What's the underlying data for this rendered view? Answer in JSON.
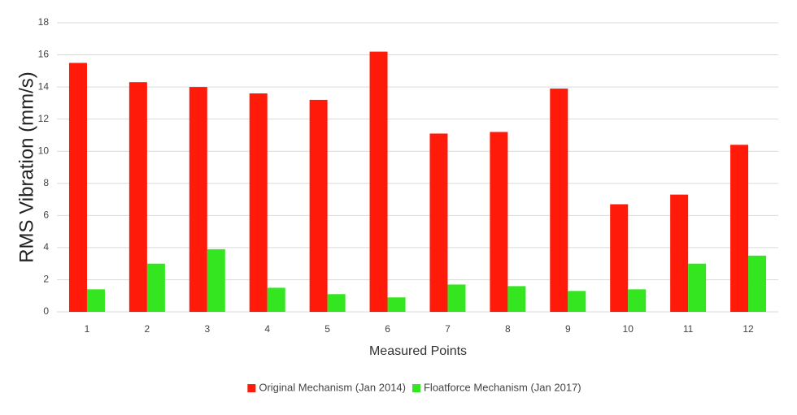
{
  "chart_data": {
    "type": "bar",
    "x_label": "Measured Points",
    "y_label": "RMS Vibration (mm/s)",
    "categories": [
      "1",
      "2",
      "3",
      "4",
      "5",
      "6",
      "7",
      "8",
      "9",
      "10",
      "11",
      "12"
    ],
    "series": [
      {
        "name": "Original Mechanism (Jan 2014)",
        "color": "#ff1a0a",
        "values": [
          15.5,
          14.3,
          14.0,
          13.6,
          13.2,
          16.2,
          11.1,
          11.2,
          13.9,
          6.7,
          7.3,
          10.4
        ]
      },
      {
        "name": "Floatforce Mechanism (Jan 2017)",
        "color": "#33e61f",
        "values": [
          1.4,
          3.0,
          3.9,
          1.5,
          1.1,
          0.9,
          1.7,
          1.6,
          1.3,
          1.4,
          3.0,
          3.5
        ]
      }
    ],
    "ylim": [
      0,
      18
    ],
    "yticks": [
      0,
      2,
      4,
      6,
      8,
      10,
      12,
      14,
      16,
      18
    ],
    "grid": true,
    "legend": "bottom"
  }
}
